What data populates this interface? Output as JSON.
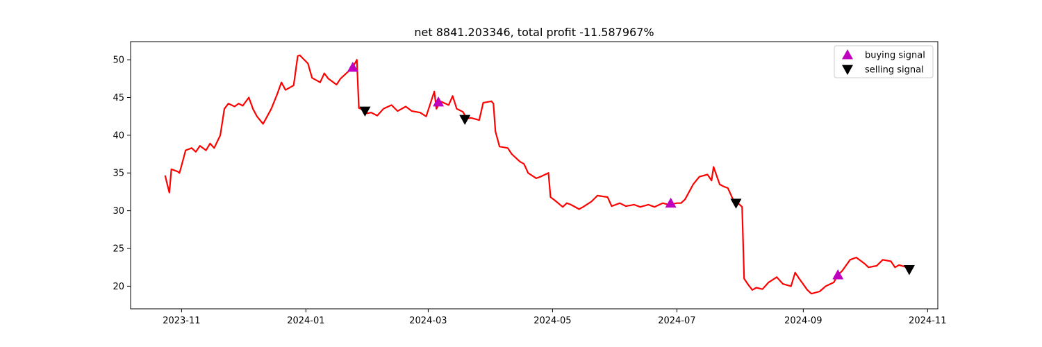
{
  "chart_data": {
    "type": "line",
    "title": "net 8841.203346, total profit -11.587967%",
    "xlabel": "",
    "ylabel": "",
    "grid": false,
    "legend_position": "top-right",
    "x_range": [
      "2023-10-07",
      "2024-11-06"
    ],
    "ylim": [
      17.0,
      52.4
    ],
    "x_ticks": [
      "2023-11-01",
      "2024-01-01",
      "2024-03-01",
      "2024-05-01",
      "2024-07-01",
      "2024-09-01",
      "2024-11-01"
    ],
    "x_tick_labels": [
      "2023-11",
      "2024-01",
      "2024-03",
      "2024-05",
      "2024-07",
      "2024-09",
      "2024-11"
    ],
    "y_ticks": [
      20,
      25,
      30,
      35,
      40,
      45,
      50
    ],
    "y_tick_labels": [
      "20",
      "25",
      "30",
      "35",
      "40",
      "45",
      "50"
    ],
    "colors": {
      "close_line": "#ff0000",
      "buy_marker": "#bf00bf",
      "sell_marker": "#000000"
    },
    "series": [
      {
        "type": "line",
        "values": [
          [
            "2023-10-24",
            34.6
          ],
          [
            "2023-10-25",
            33.5
          ],
          [
            "2023-10-26",
            32.4
          ],
          [
            "2023-10-27",
            35.5
          ],
          [
            "2023-10-30",
            35.2
          ],
          [
            "2023-10-31",
            35.0
          ],
          [
            "2023-11-01",
            36.0
          ],
          [
            "2023-11-02",
            37.0
          ],
          [
            "2023-11-03",
            38.0
          ],
          [
            "2023-11-06",
            38.3
          ],
          [
            "2023-11-08",
            37.8
          ],
          [
            "2023-11-10",
            38.6
          ],
          [
            "2023-11-13",
            38.0
          ],
          [
            "2023-11-15",
            38.9
          ],
          [
            "2023-11-17",
            38.3
          ],
          [
            "2023-11-20",
            40.0
          ],
          [
            "2023-11-22",
            43.5
          ],
          [
            "2023-11-24",
            44.2
          ],
          [
            "2023-11-27",
            43.8
          ],
          [
            "2023-11-29",
            44.2
          ],
          [
            "2023-12-01",
            43.9
          ],
          [
            "2023-12-04",
            45.0
          ],
          [
            "2023-12-06",
            43.5
          ],
          [
            "2023-12-08",
            42.5
          ],
          [
            "2023-12-11",
            41.5
          ],
          [
            "2023-12-13",
            42.5
          ],
          [
            "2023-12-15",
            43.5
          ],
          [
            "2023-12-18",
            45.5
          ],
          [
            "2023-12-20",
            47.0
          ],
          [
            "2023-12-22",
            46.0
          ],
          [
            "2023-12-26",
            46.6
          ],
          [
            "2023-12-28",
            50.5
          ],
          [
            "2023-12-29",
            50.6
          ],
          [
            "2024-01-02",
            49.5
          ],
          [
            "2024-01-04",
            47.6
          ],
          [
            "2024-01-08",
            47.0
          ],
          [
            "2024-01-10",
            48.2
          ],
          [
            "2024-01-12",
            47.5
          ],
          [
            "2024-01-16",
            46.7
          ],
          [
            "2024-01-18",
            47.5
          ],
          [
            "2024-01-22",
            48.5
          ],
          [
            "2024-01-24",
            49.0
          ],
          [
            "2024-01-26",
            50.0
          ],
          [
            "2024-01-27",
            43.6
          ],
          [
            "2024-01-29",
            43.4
          ],
          [
            "2024-01-31",
            42.9
          ],
          [
            "2024-02-02",
            43.0
          ],
          [
            "2024-02-05",
            42.6
          ],
          [
            "2024-02-08",
            43.5
          ],
          [
            "2024-02-12",
            44.0
          ],
          [
            "2024-02-15",
            43.2
          ],
          [
            "2024-02-19",
            43.8
          ],
          [
            "2024-02-22",
            43.2
          ],
          [
            "2024-02-26",
            43.0
          ],
          [
            "2024-02-29",
            42.5
          ],
          [
            "2024-03-04",
            45.8
          ],
          [
            "2024-03-05",
            43.5
          ],
          [
            "2024-03-07",
            44.5
          ],
          [
            "2024-03-11",
            44.0
          ],
          [
            "2024-03-13",
            45.2
          ],
          [
            "2024-03-15",
            43.5
          ],
          [
            "2024-03-18",
            43.1
          ],
          [
            "2024-03-20",
            42.2
          ],
          [
            "2024-03-22",
            42.3
          ],
          [
            "2024-03-26",
            42.0
          ],
          [
            "2024-03-28",
            44.3
          ],
          [
            "2024-04-01",
            44.5
          ],
          [
            "2024-04-02",
            44.2
          ],
          [
            "2024-04-03",
            40.5
          ],
          [
            "2024-04-05",
            38.5
          ],
          [
            "2024-04-09",
            38.3
          ],
          [
            "2024-04-11",
            37.5
          ],
          [
            "2024-04-15",
            36.5
          ],
          [
            "2024-04-17",
            36.2
          ],
          [
            "2024-04-19",
            35.0
          ],
          [
            "2024-04-23",
            34.3
          ],
          [
            "2024-04-25",
            34.5
          ],
          [
            "2024-04-29",
            35.0
          ],
          [
            "2024-04-30",
            31.8
          ],
          [
            "2024-05-02",
            31.4
          ],
          [
            "2024-05-06",
            30.5
          ],
          [
            "2024-05-08",
            31.0
          ],
          [
            "2024-05-10",
            30.8
          ],
          [
            "2024-05-14",
            30.2
          ],
          [
            "2024-05-16",
            30.5
          ],
          [
            "2024-05-20",
            31.2
          ],
          [
            "2024-05-23",
            32.0
          ],
          [
            "2024-05-28",
            31.8
          ],
          [
            "2024-05-30",
            30.6
          ],
          [
            "2024-06-03",
            31.0
          ],
          [
            "2024-06-06",
            30.6
          ],
          [
            "2024-06-10",
            30.8
          ],
          [
            "2024-06-13",
            30.5
          ],
          [
            "2024-06-17",
            30.8
          ],
          [
            "2024-06-20",
            30.5
          ],
          [
            "2024-06-24",
            31.0
          ],
          [
            "2024-06-27",
            30.8
          ],
          [
            "2024-07-01",
            31.0
          ],
          [
            "2024-07-03",
            31.0
          ],
          [
            "2024-07-05",
            31.5
          ],
          [
            "2024-07-09",
            33.5
          ],
          [
            "2024-07-12",
            34.5
          ],
          [
            "2024-07-16",
            34.8
          ],
          [
            "2024-07-18",
            34.0
          ],
          [
            "2024-07-19",
            35.8
          ],
          [
            "2024-07-22",
            33.5
          ],
          [
            "2024-07-24",
            33.2
          ],
          [
            "2024-07-26",
            33.0
          ],
          [
            "2024-07-29",
            31.2
          ],
          [
            "2024-07-31",
            31.0
          ],
          [
            "2024-08-02",
            30.5
          ],
          [
            "2024-08-03",
            21.0
          ],
          [
            "2024-08-05",
            20.2
          ],
          [
            "2024-08-07",
            19.5
          ],
          [
            "2024-08-09",
            19.8
          ],
          [
            "2024-08-12",
            19.6
          ],
          [
            "2024-08-15",
            20.5
          ],
          [
            "2024-08-19",
            21.2
          ],
          [
            "2024-08-22",
            20.3
          ],
          [
            "2024-08-26",
            20.0
          ],
          [
            "2024-08-28",
            21.8
          ],
          [
            "2024-08-30",
            21.0
          ],
          [
            "2024-09-03",
            19.5
          ],
          [
            "2024-09-05",
            19.0
          ],
          [
            "2024-09-09",
            19.3
          ],
          [
            "2024-09-12",
            20.0
          ],
          [
            "2024-09-16",
            20.5
          ],
          [
            "2024-09-18",
            21.5
          ],
          [
            "2024-09-20",
            22.0
          ],
          [
            "2024-09-24",
            23.5
          ],
          [
            "2024-09-27",
            23.8
          ],
          [
            "2024-10-01",
            23.0
          ],
          [
            "2024-10-03",
            22.5
          ],
          [
            "2024-10-07",
            22.7
          ],
          [
            "2024-10-10",
            23.5
          ],
          [
            "2024-10-14",
            23.3
          ],
          [
            "2024-10-16",
            22.5
          ],
          [
            "2024-10-18",
            22.8
          ],
          [
            "2024-10-22",
            22.5
          ]
        ]
      },
      {
        "name": "buying signal",
        "type": "scatter",
        "marker": "triangle-up",
        "values": [
          [
            "2024-01-24",
            49.0
          ],
          [
            "2024-03-06",
            44.4
          ],
          [
            "2024-06-28",
            31.0
          ],
          [
            "2024-09-18",
            21.5
          ]
        ]
      },
      {
        "name": "selling signal",
        "type": "scatter",
        "marker": "triangle-down",
        "values": [
          [
            "2024-01-30",
            43.2
          ],
          [
            "2024-03-19",
            42.1
          ],
          [
            "2024-07-30",
            31.0
          ],
          [
            "2024-10-23",
            22.2
          ]
        ]
      }
    ]
  }
}
